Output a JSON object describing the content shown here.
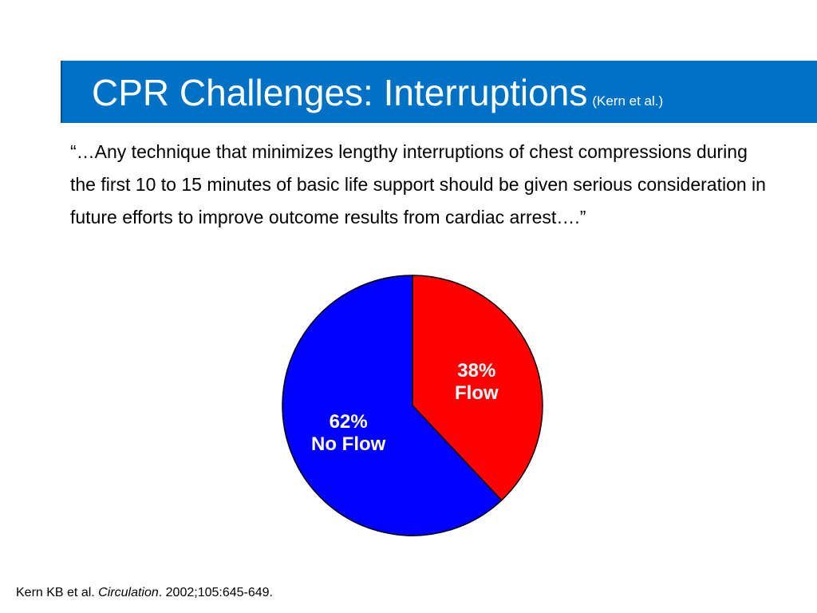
{
  "slide": {
    "title": "CPR Challenges: Interruptions",
    "title_sub": "(Kern et al.)",
    "quote": "“…Any technique that minimizes lengthy interruptions of chest compressions during the first 10 to 15 minutes of basic life support should be given serious consideration in future efforts to improve outcome results from cardiac arrest….”",
    "citation": {
      "authors": "Kern KB et al.",
      "journal": "Circulation",
      "details": ". 2002;105:645-649."
    }
  },
  "colors": {
    "title_bar": "#0072c6",
    "flow": "#ff0000",
    "no_flow": "#0000ff"
  },
  "chart_data": {
    "type": "pie",
    "title": "",
    "slices": [
      {
        "label": "Flow",
        "value": 38,
        "value_label": "38%",
        "color": "#ff0000"
      },
      {
        "label": "No Flow",
        "value": 62,
        "value_label": "62%",
        "color": "#0000ff"
      }
    ],
    "start": "12 o'clock",
    "direction": "clockwise",
    "legend": "none"
  }
}
